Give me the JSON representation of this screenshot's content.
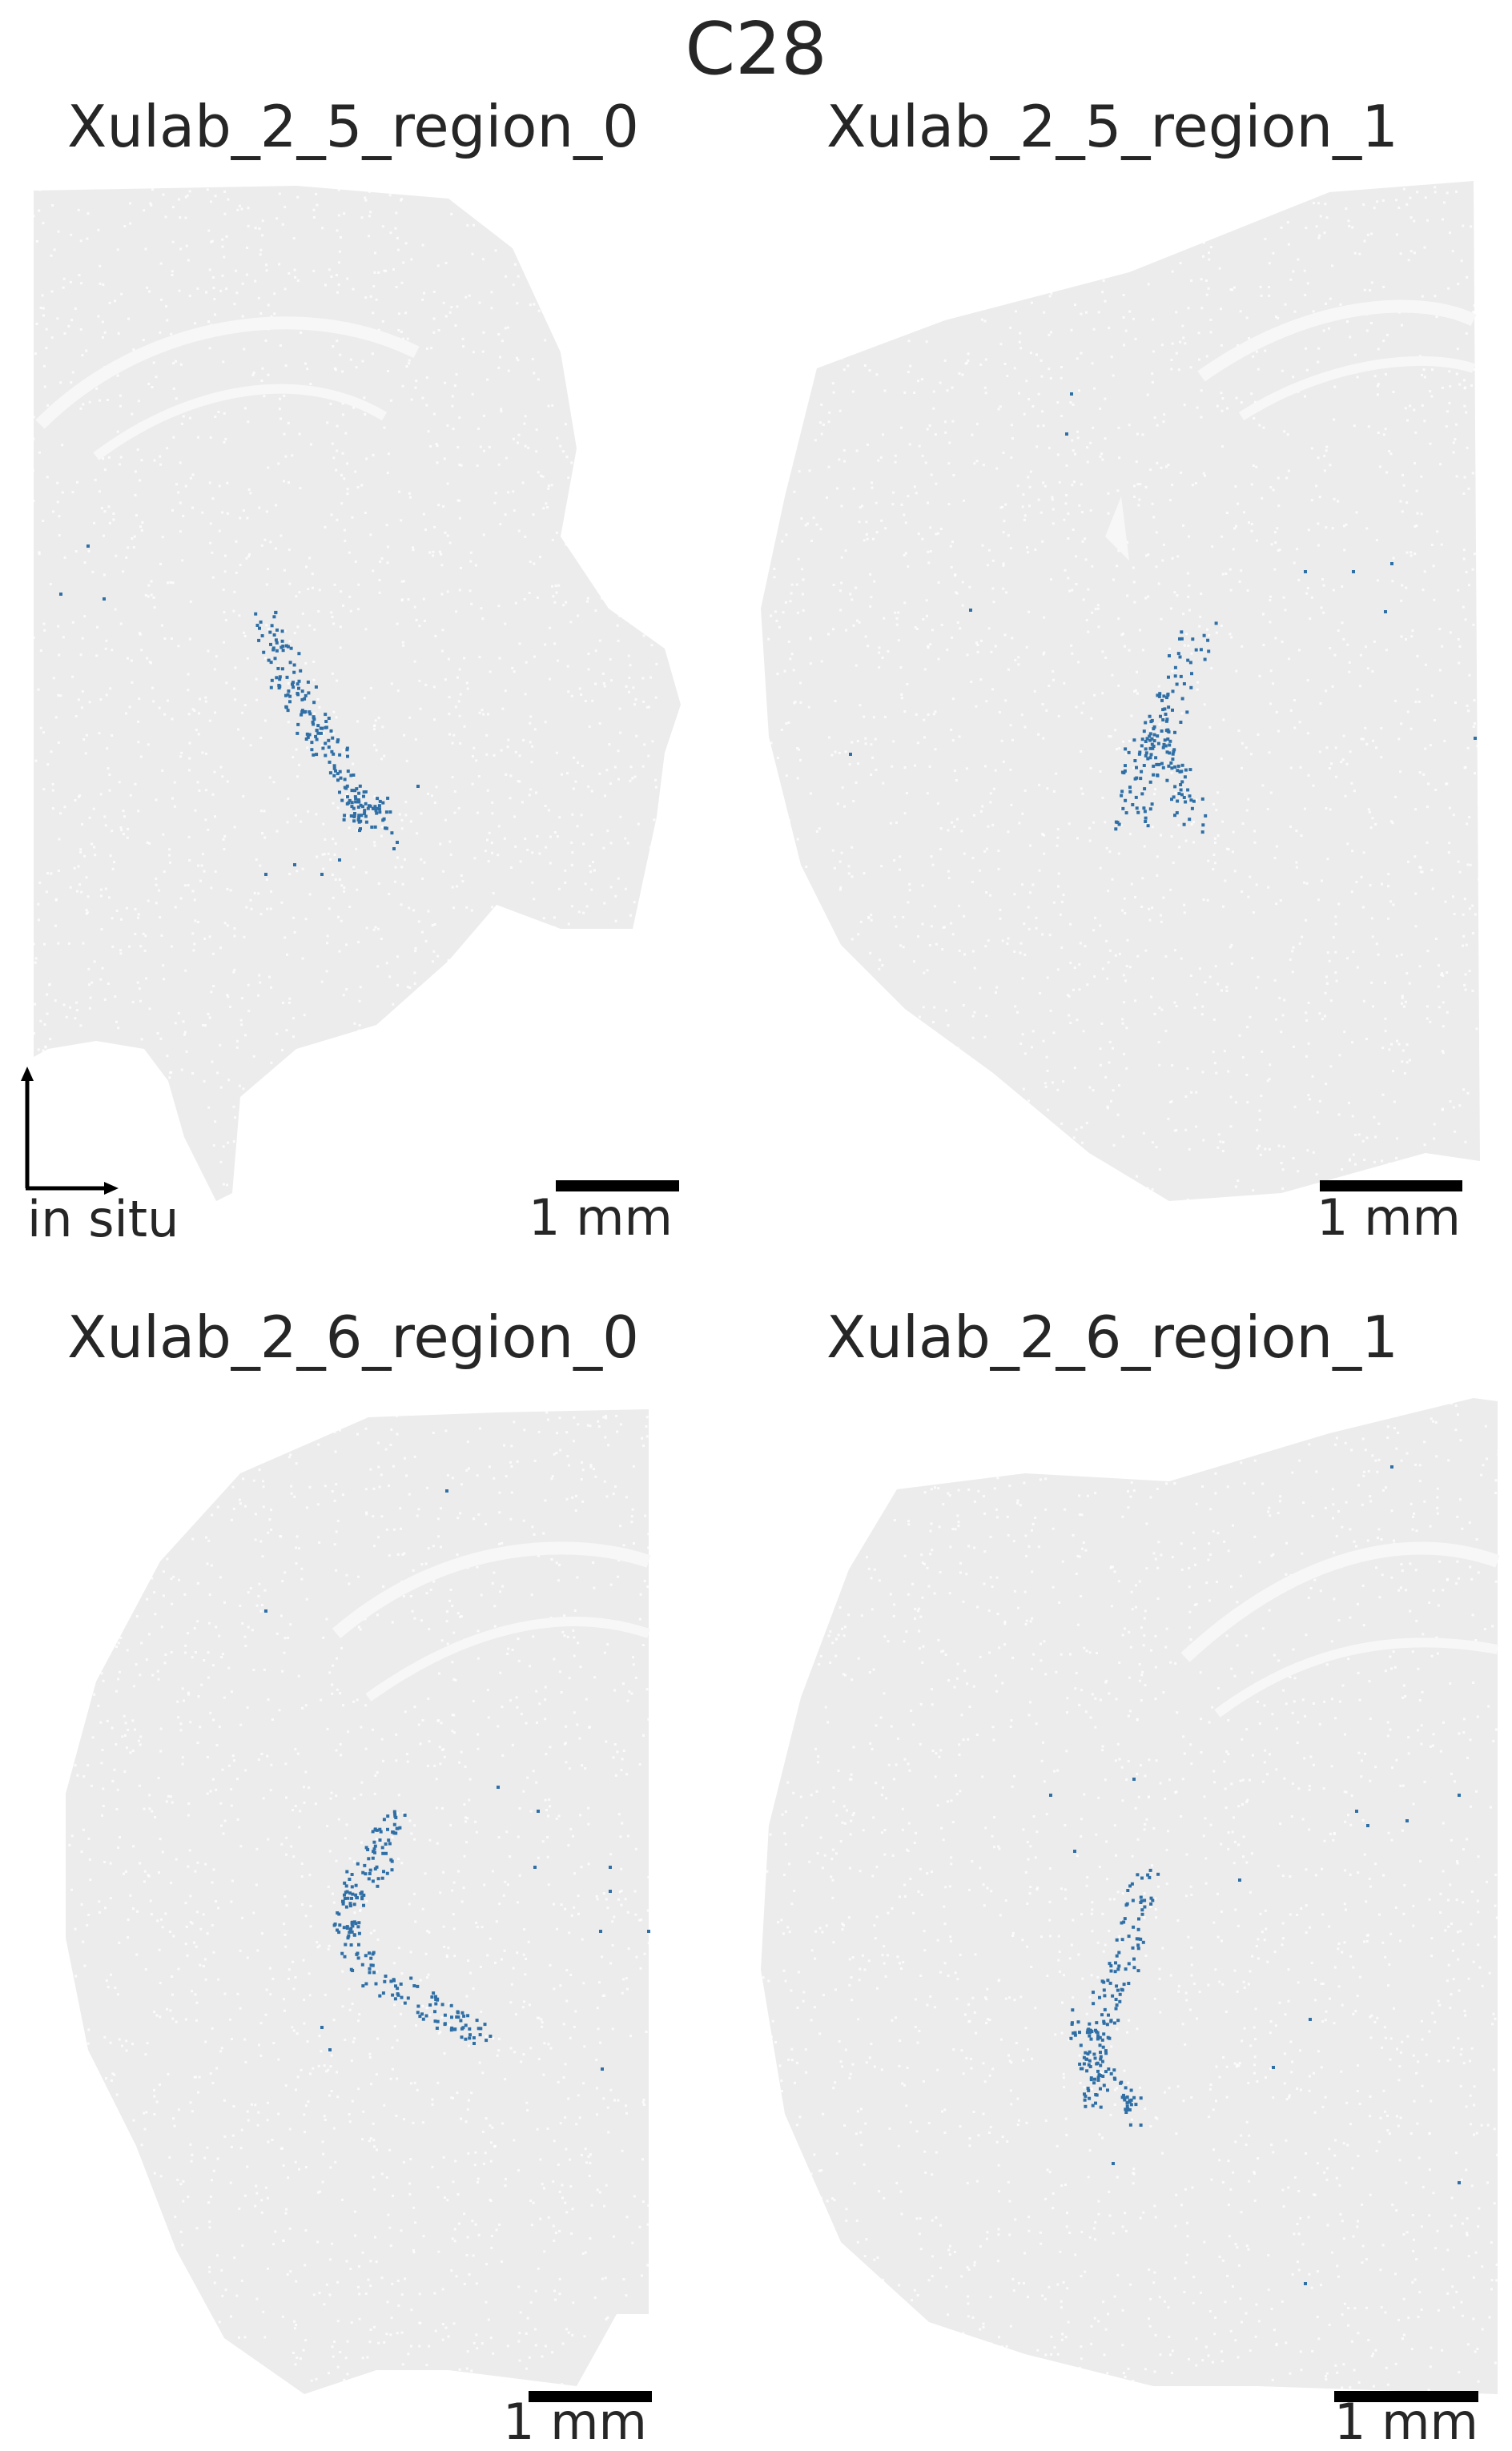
{
  "figure": {
    "title": "C28",
    "axis_indicator_label": "in situ",
    "background_color": "#ffffff",
    "tissue_color": "#ececec",
    "highlight_color": "#2f6fa6"
  },
  "panels": [
    {
      "title": "Xulab_2_5_region_0",
      "scale_label": "1 mm"
    },
    {
      "title": "Xulab_2_5_region_1",
      "scale_label": "1 mm"
    },
    {
      "title": "Xulab_2_6_region_0",
      "scale_label": "1 mm"
    },
    {
      "title": "Xulab_2_6_region_1",
      "scale_label": "1 mm"
    }
  ]
}
